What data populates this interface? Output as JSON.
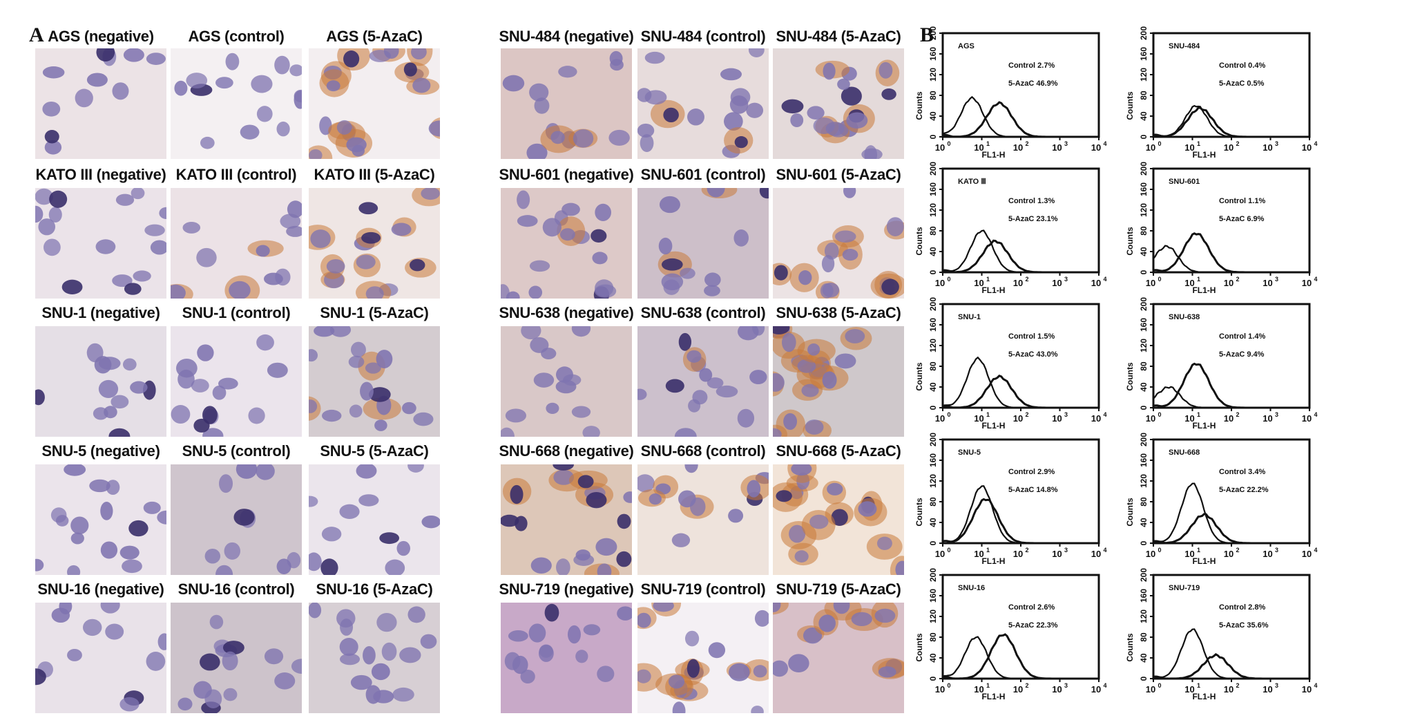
{
  "panel_labels": {
    "a": "A",
    "b": "B"
  },
  "ihc_left": {
    "rows": [
      {
        "cell": "AGS",
        "captions": [
          "AGS (negative)",
          "AGS (control)",
          "AGS (5-AzaC)"
        ],
        "stain": [
          0,
          0.1,
          0.5
        ],
        "bg": [
          "#ece3e6",
          "#f4f0f2",
          "#f3eef0"
        ]
      },
      {
        "cell": "KATO III",
        "captions": [
          "KATO III (negative)",
          "KATO III (control)",
          "KATO III (5-AzaC)"
        ],
        "stain": [
          0,
          0.4,
          0.7
        ],
        "bg": [
          "#ebe3e9",
          "#ece2e6",
          "#efe6e4"
        ]
      },
      {
        "cell": "SNU-1",
        "captions": [
          "SNU-1 (negative)",
          "SNU-1 (control)",
          "SNU-1 (5-AzaC)"
        ],
        "stain": [
          0,
          0,
          0.2
        ],
        "bg": [
          "#e5dfe6",
          "#ebe4ec",
          "#d4ccd0"
        ]
      },
      {
        "cell": "SNU-5",
        "captions": [
          "SNU-5 (negative)",
          "SNU-5 (control)",
          "SNU-5 (5-AzaC)"
        ],
        "stain": [
          0,
          0,
          0
        ],
        "bg": [
          "#ebe4eb",
          "#cfc5cd",
          "#ebe5ec"
        ]
      },
      {
        "cell": "SNU-16",
        "captions": [
          "SNU-16 (negative)",
          "SNU-16 (control)",
          "SNU-16 (5-AzaC)"
        ],
        "stain": [
          0,
          0,
          0
        ],
        "bg": [
          "#e9e2e9",
          "#cdc3cb",
          "#d7cfd4"
        ]
      }
    ]
  },
  "ihc_right": {
    "rows": [
      {
        "cell": "SNU-484",
        "captions": [
          "SNU-484 (negative)",
          "SNU-484 (control)",
          "SNU-484 (5-AzaC)"
        ],
        "stain": [
          0.1,
          0.2,
          0.3
        ],
        "bg": [
          "#dcc6c4",
          "#e7dcdc",
          "#e4dada"
        ]
      },
      {
        "cell": "SNU-601",
        "captions": [
          "SNU-601 (negative)",
          "SNU-601 (control)",
          "SNU-601 (5-AzaC)"
        ],
        "stain": [
          0.1,
          0.1,
          0.6
        ],
        "bg": [
          "#ddc9c8",
          "#cdbfc9",
          "#ece3e4"
        ]
      },
      {
        "cell": "SNU-638",
        "captions": [
          "SNU-638 (negative)",
          "SNU-638 (control)",
          "SNU-638 (5-AzaC)"
        ],
        "stain": [
          0.2,
          0.1,
          0.8
        ],
        "bg": [
          "#d9c8c8",
          "#ccc0cc",
          "#cfc8cb"
        ]
      },
      {
        "cell": "SNU-668",
        "captions": [
          "SNU-668 (negative)",
          "SNU-668 (control)",
          "SNU-668 (5-AzaC)"
        ],
        "stain": [
          0.3,
          0.5,
          0.9
        ],
        "bg": [
          "#ddc7b8",
          "#eee3dc",
          "#f2e4d8"
        ]
      },
      {
        "cell": "SNU-719",
        "captions": [
          "SNU-719 (negative)",
          "SNU-719 (control)",
          "SNU-719 (5-AzaC)"
        ],
        "stain": [
          0.1,
          0.6,
          0.8
        ],
        "bg": [
          "#c8a9c8",
          "#f4f0f4",
          "#d8c0c8"
        ]
      }
    ]
  },
  "histograms": {
    "xlabel": "FL1-H",
    "ylabel": "Counts",
    "y_ticks": [
      "0",
      "40",
      "80",
      "120",
      "160",
      "200"
    ],
    "x_ticks": [
      "10",
      "10",
      "10",
      "10",
      "10"
    ],
    "x_tick_exps": [
      "0",
      "1",
      "2",
      "3",
      "4"
    ],
    "plots": [
      {
        "name": "AGS",
        "control": "Control 2.7%",
        "azac": "5-AzaC 46.9%",
        "peak1": [
          0.75,
          75
        ],
        "peak2": [
          1.45,
          65
        ]
      },
      {
        "name": "SNU-484",
        "control": "Control 0.4%",
        "azac": "5-AzaC 0.5%",
        "peak1": [
          1.1,
          60
        ],
        "peak2": [
          1.2,
          55
        ]
      },
      {
        "name": "KATO Ⅲ",
        "control": "Control 1.3%",
        "azac": "5-AzaC 23.1%",
        "peak1": [
          1.0,
          80
        ],
        "peak2": [
          1.35,
          60
        ]
      },
      {
        "name": "SNU-601",
        "control": "Control 1.1%",
        "azac": "5-AzaC 6.9%",
        "peak1": [
          0.35,
          50
        ],
        "peak2": [
          1.1,
          75
        ]
      },
      {
        "name": "SNU-1",
        "control": "Control 1.5%",
        "azac": "5-AzaC 43.0%",
        "peak1": [
          0.9,
          95
        ],
        "peak2": [
          1.45,
          60
        ]
      },
      {
        "name": "SNU-638",
        "control": "Control 1.4%",
        "azac": "5-AzaC 9.4%",
        "peak1": [
          0.4,
          40
        ],
        "peak2": [
          1.1,
          85
        ]
      },
      {
        "name": "SNU-5",
        "control": "Control 2.9%",
        "azac": "5-AzaC 14.8%",
        "peak1": [
          1.0,
          110
        ],
        "peak2": [
          1.1,
          85
        ]
      },
      {
        "name": "SNU-668",
        "control": "Control 3.4%",
        "azac": "5-AzaC 22.2%",
        "peak1": [
          1.0,
          115
        ],
        "peak2": [
          1.3,
          55
        ]
      },
      {
        "name": "SNU-16",
        "control": "Control 2.6%",
        "azac": "5-AzaC 22.3%",
        "peak1": [
          0.85,
          80
        ],
        "peak2": [
          1.55,
          85
        ]
      },
      {
        "name": "SNU-719",
        "control": "Control 2.8%",
        "azac": "5-AzaC 35.6%",
        "peak1": [
          1.0,
          95
        ],
        "peak2": [
          1.6,
          45
        ]
      }
    ]
  }
}
